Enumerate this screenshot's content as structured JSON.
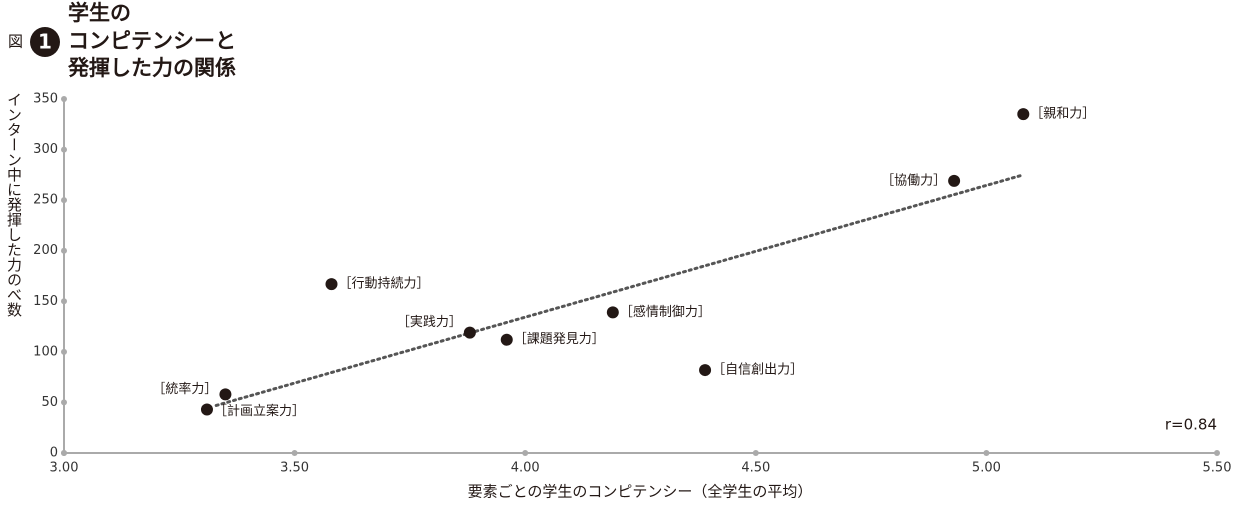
{
  "figure_label": "図",
  "figure_number": "1",
  "chart_data": {
    "type": "scatter",
    "title_lines": [
      "学生の",
      "コンピテンシーと",
      "発揮した力の関係"
    ],
    "x_label": "要素ごとの学生のコンピテンシー（全学生の平均）",
    "y_label": "インターン中に発揮した力のべ数",
    "annotation": "r=0.84",
    "color": "#231815",
    "labels": [
      "［親和力］",
      "［協働力］",
      "［行動持続力］",
      "［実践力］",
      "［感情制御力］",
      "［課題発見力］",
      "［自信創出力］",
      "［統率力］",
      "［計画立案力］"
    ],
    "x": [
      5.08,
      4.93,
      3.58,
      3.88,
      4.19,
      3.96,
      4.39,
      3.35,
      3.31
    ],
    "y": [
      335,
      269,
      167,
      119,
      139,
      112,
      82,
      58,
      43
    ],
    "trendline": {
      "x": [
        3.33,
        5.08
      ],
      "y": [
        47,
        275
      ],
      "color": "#555555"
    },
    "xlim": [
      3,
      5.5
    ],
    "xticks": [
      {
        "value": 3,
        "label": "3.00"
      },
      {
        "value": 3.5,
        "label": "3.50"
      },
      {
        "value": 4,
        "label": "4.00"
      },
      {
        "value": 4.5,
        "label": "4.50"
      },
      {
        "value": 5,
        "label": "5.00"
      },
      {
        "value": 5.5,
        "label": "5.50"
      }
    ],
    "ylim": [
      0,
      350
    ],
    "yticks": [
      0,
      50,
      100,
      150,
      200,
      250,
      300,
      350
    ]
  }
}
